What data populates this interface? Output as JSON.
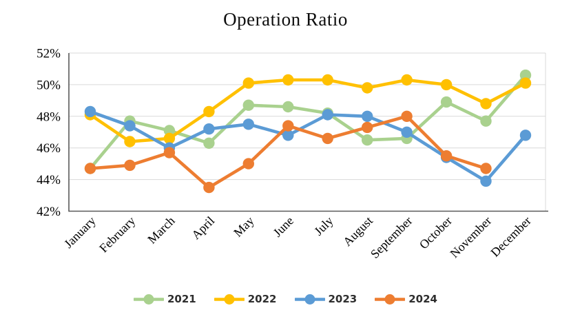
{
  "title": "Operation Ratio",
  "chart_data": {
    "type": "line",
    "title": "Operation Ratio",
    "categories": [
      "January",
      "February",
      "March",
      "April",
      "May",
      "June",
      "July",
      "August",
      "September",
      "October",
      "November",
      "December"
    ],
    "series": [
      {
        "name": "2021",
        "color": "#A9D18E",
        "values": [
          44.7,
          47.7,
          47.1,
          46.3,
          48.7,
          48.6,
          48.2,
          46.5,
          46.6,
          48.9,
          47.7,
          50.6
        ]
      },
      {
        "name": "2022",
        "color": "#FFC000",
        "values": [
          48.1,
          46.4,
          46.6,
          48.3,
          50.1,
          50.3,
          50.3,
          49.8,
          50.3,
          50.0,
          48.8,
          50.1
        ]
      },
      {
        "name": "2023",
        "color": "#5B9BD5",
        "values": [
          48.3,
          47.4,
          46.0,
          47.2,
          47.5,
          46.8,
          48.1,
          48.0,
          47.0,
          45.4,
          43.9,
          46.8
        ]
      },
      {
        "name": "2024",
        "color": "#ED7D31",
        "values": [
          44.7,
          44.9,
          45.7,
          43.5,
          45.0,
          47.4,
          46.6,
          47.3,
          48.0,
          45.5,
          44.7,
          null
        ]
      }
    ],
    "ylim": [
      42,
      52
    ],
    "y_ticks": [
      {
        "label": "52%",
        "value": 52
      },
      {
        "label": "50%",
        "value": 50
      },
      {
        "label": "48%",
        "value": 48
      },
      {
        "label": "46%",
        "value": 46
      },
      {
        "label": "44%",
        "value": 44
      },
      {
        "label": "42%",
        "value": 42
      }
    ],
    "xlabel": "",
    "ylabel": "",
    "grid": true,
    "x_tick_rotation_deg": 45,
    "legend_position": "bottom"
  }
}
